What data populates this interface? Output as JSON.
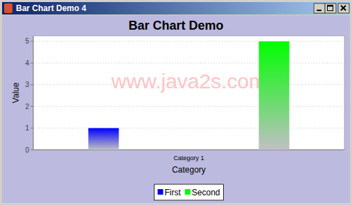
{
  "window": {
    "title": "Bar Chart Demo 4"
  },
  "chart_data": {
    "type": "bar",
    "title": "Bar Chart Demo",
    "x_label": "Category",
    "y_label": "Value",
    "annotations": [
      "www.java2s.com"
    ],
    "categories": [
      "Category 1"
    ],
    "series": [
      {
        "name": "First",
        "color": "#0000ff",
        "values": [
          1
        ]
      },
      {
        "name": "Second",
        "color": "#00ff00",
        "values": [
          5
        ]
      }
    ],
    "ylim": [
      0,
      5.25
    ],
    "yticks": [
      0,
      1,
      2,
      3,
      4,
      5
    ],
    "grid": true,
    "legend": "bottom"
  }
}
